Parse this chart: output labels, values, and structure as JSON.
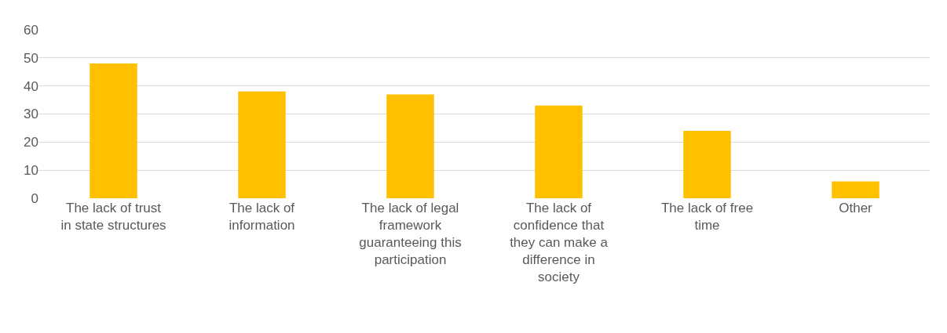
{
  "chart_data": {
    "type": "bar",
    "categories": [
      "The lack of trust in state structures",
      "The lack of information",
      "The lack of legal framework guaranteeing this participation",
      "The lack of confidence that they can make a difference in society",
      "The lack of free time",
      "Other"
    ],
    "values": [
      48,
      38,
      37,
      33,
      24,
      6
    ],
    "color": "#ffc000",
    "ylim": [
      0,
      60
    ],
    "yticks": [
      0,
      10,
      20,
      30,
      40,
      50,
      60
    ],
    "grid": "y"
  }
}
